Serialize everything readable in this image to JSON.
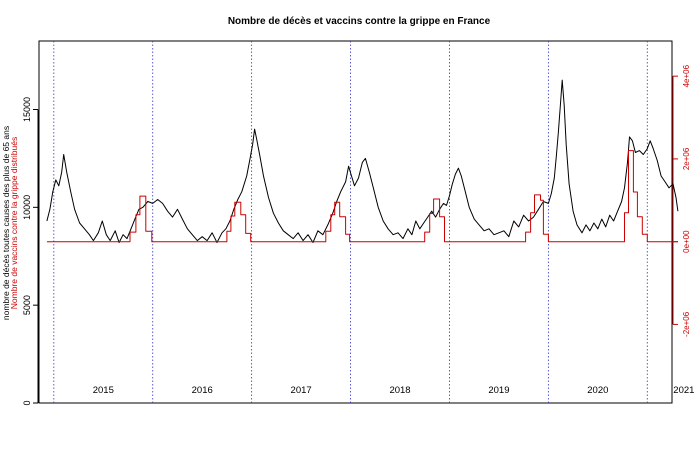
{
  "chart_data": {
    "type": "line",
    "title": "Nombre de décès et vaccins contre la grippe en France",
    "ylabel_left": "nombre de décès toutes causes des plus de 65 ans",
    "ylabel_right": "Nombre de vaccins contre la grippe distribués",
    "left_axis": {
      "ticks": [
        0,
        5000,
        10000,
        15000
      ],
      "tick_labels": [
        "0",
        "5000",
        "10000",
        "15000"
      ],
      "ylim": [
        0,
        18500
      ],
      "color": "#000000"
    },
    "right_axis": {
      "ticks": [
        -2000000,
        0,
        2000000,
        4000000
      ],
      "tick_labels": [
        "-2e+06",
        "0e+00",
        "2e+06",
        "4e+06"
      ],
      "ylim": [
        -3900000,
        4850000
      ],
      "color": "#cc0000"
    },
    "x_axis": {
      "xlim": [
        2014.85,
        2021.25
      ]
    },
    "year_labels": [
      {
        "x": 2015.5,
        "label": "2015"
      },
      {
        "x": 2016.5,
        "label": "2016"
      },
      {
        "x": 2017.5,
        "label": "2017"
      },
      {
        "x": 2018.5,
        "label": "2018"
      },
      {
        "x": 2019.5,
        "label": "2019"
      },
      {
        "x": 2020.5,
        "label": "2020"
      },
      {
        "x": 2021.37,
        "label": "2021"
      }
    ],
    "year_separators": [
      2015.0,
      2016.0,
      2017.0,
      2018.0,
      2019.0,
      2020.0,
      2021.0
    ],
    "series": [
      {
        "axis": "left",
        "color": "#000000",
        "points": [
          [
            2014.93,
            9300
          ],
          [
            2014.96,
            9900
          ],
          [
            2014.99,
            10800
          ],
          [
            2015.02,
            11400
          ],
          [
            2015.05,
            11100
          ],
          [
            2015.08,
            11800
          ],
          [
            2015.1,
            12700
          ],
          [
            2015.13,
            11800
          ],
          [
            2015.17,
            10800
          ],
          [
            2015.21,
            9900
          ],
          [
            2015.26,
            9200
          ],
          [
            2015.31,
            8900
          ],
          [
            2015.36,
            8600
          ],
          [
            2015.4,
            8300
          ],
          [
            2015.45,
            8700
          ],
          [
            2015.49,
            9300
          ],
          [
            2015.53,
            8600
          ],
          [
            2015.57,
            8300
          ],
          [
            2015.62,
            8800
          ],
          [
            2015.66,
            8200
          ],
          [
            2015.7,
            8600
          ],
          [
            2015.74,
            8400
          ],
          [
            2015.78,
            8900
          ],
          [
            2015.82,
            9400
          ],
          [
            2015.86,
            9900
          ],
          [
            2015.9,
            10000
          ],
          [
            2015.95,
            10300
          ],
          [
            2016.0,
            10200
          ],
          [
            2016.05,
            10400
          ],
          [
            2016.1,
            10200
          ],
          [
            2016.15,
            9800
          ],
          [
            2016.2,
            9500
          ],
          [
            2016.25,
            9900
          ],
          [
            2016.3,
            9400
          ],
          [
            2016.35,
            8900
          ],
          [
            2016.4,
            8600
          ],
          [
            2016.45,
            8300
          ],
          [
            2016.5,
            8500
          ],
          [
            2016.55,
            8300
          ],
          [
            2016.6,
            8700
          ],
          [
            2016.65,
            8200
          ],
          [
            2016.7,
            8700
          ],
          [
            2016.74,
            8900
          ],
          [
            2016.78,
            9300
          ],
          [
            2016.82,
            9900
          ],
          [
            2016.86,
            10400
          ],
          [
            2016.9,
            10800
          ],
          [
            2016.95,
            11600
          ],
          [
            2016.98,
            12400
          ],
          [
            2017.01,
            13200
          ],
          [
            2017.03,
            14000
          ],
          [
            2017.05,
            13500
          ],
          [
            2017.08,
            12700
          ],
          [
            2017.12,
            11600
          ],
          [
            2017.17,
            10500
          ],
          [
            2017.22,
            9700
          ],
          [
            2017.27,
            9200
          ],
          [
            2017.32,
            8800
          ],
          [
            2017.37,
            8600
          ],
          [
            2017.42,
            8400
          ],
          [
            2017.47,
            8700
          ],
          [
            2017.52,
            8300
          ],
          [
            2017.57,
            8600
          ],
          [
            2017.62,
            8200
          ],
          [
            2017.67,
            8800
          ],
          [
            2017.72,
            8600
          ],
          [
            2017.77,
            9100
          ],
          [
            2017.82,
            9700
          ],
          [
            2017.86,
            10300
          ],
          [
            2017.9,
            10800
          ],
          [
            2017.95,
            11300
          ],
          [
            2017.98,
            12100
          ],
          [
            2018.01,
            11600
          ],
          [
            2018.04,
            11100
          ],
          [
            2018.08,
            11500
          ],
          [
            2018.12,
            12300
          ],
          [
            2018.15,
            12500
          ],
          [
            2018.19,
            11800
          ],
          [
            2018.23,
            11000
          ],
          [
            2018.28,
            10000
          ],
          [
            2018.33,
            9300
          ],
          [
            2018.38,
            8900
          ],
          [
            2018.43,
            8600
          ],
          [
            2018.48,
            8700
          ],
          [
            2018.53,
            8400
          ],
          [
            2018.58,
            8900
          ],
          [
            2018.62,
            8600
          ],
          [
            2018.66,
            9300
          ],
          [
            2018.7,
            8900
          ],
          [
            2018.74,
            9200
          ],
          [
            2018.78,
            9500
          ],
          [
            2018.82,
            9800
          ],
          [
            2018.86,
            9500
          ],
          [
            2018.9,
            9900
          ],
          [
            2018.94,
            10200
          ],
          [
            2018.97,
            10100
          ],
          [
            2019.0,
            10600
          ],
          [
            2019.03,
            11200
          ],
          [
            2019.06,
            11700
          ],
          [
            2019.09,
            12000
          ],
          [
            2019.12,
            11600
          ],
          [
            2019.16,
            10800
          ],
          [
            2019.2,
            10000
          ],
          [
            2019.25,
            9400
          ],
          [
            2019.3,
            9100
          ],
          [
            2019.35,
            8800
          ],
          [
            2019.4,
            8900
          ],
          [
            2019.45,
            8600
          ],
          [
            2019.5,
            8700
          ],
          [
            2019.55,
            8800
          ],
          [
            2019.6,
            8500
          ],
          [
            2019.65,
            9300
          ],
          [
            2019.7,
            9000
          ],
          [
            2019.75,
            9600
          ],
          [
            2019.8,
            9300
          ],
          [
            2019.85,
            9500
          ],
          [
            2019.9,
            9900
          ],
          [
            2019.95,
            10300
          ],
          [
            2020.0,
            10200
          ],
          [
            2020.03,
            10700
          ],
          [
            2020.06,
            11500
          ],
          [
            2020.08,
            12600
          ],
          [
            2020.1,
            13800
          ],
          [
            2020.12,
            15100
          ],
          [
            2020.14,
            16500
          ],
          [
            2020.16,
            15200
          ],
          [
            2020.18,
            13200
          ],
          [
            2020.21,
            11200
          ],
          [
            2020.25,
            9800
          ],
          [
            2020.29,
            9100
          ],
          [
            2020.34,
            8700
          ],
          [
            2020.38,
            9100
          ],
          [
            2020.42,
            8800
          ],
          [
            2020.46,
            9200
          ],
          [
            2020.5,
            8900
          ],
          [
            2020.54,
            9400
          ],
          [
            2020.58,
            9000
          ],
          [
            2020.62,
            9600
          ],
          [
            2020.66,
            9300
          ],
          [
            2020.7,
            9800
          ],
          [
            2020.74,
            10300
          ],
          [
            2020.77,
            11000
          ],
          [
            2020.8,
            12300
          ],
          [
            2020.82,
            13600
          ],
          [
            2020.85,
            13400
          ],
          [
            2020.88,
            12800
          ],
          [
            2020.92,
            12900
          ],
          [
            2020.96,
            12700
          ],
          [
            2021.0,
            13000
          ],
          [
            2021.03,
            13400
          ],
          [
            2021.06,
            13000
          ],
          [
            2021.1,
            12400
          ],
          [
            2021.14,
            11600
          ],
          [
            2021.18,
            11300
          ],
          [
            2021.22,
            11000
          ],
          [
            2021.26,
            11200
          ],
          [
            2021.29,
            10500
          ],
          [
            2021.31,
            9800
          ]
        ]
      },
      {
        "axis": "right",
        "color": "#cc0000",
        "points": [
          [
            2014.93,
            0
          ],
          [
            2015.77,
            0
          ],
          [
            2015.77,
            230000
          ],
          [
            2015.83,
            230000
          ],
          [
            2015.83,
            650000
          ],
          [
            2015.87,
            650000
          ],
          [
            2015.87,
            1100000
          ],
          [
            2015.93,
            1100000
          ],
          [
            2015.93,
            250000
          ],
          [
            2015.99,
            250000
          ],
          [
            2015.99,
            0
          ],
          [
            2016.75,
            0
          ],
          [
            2016.75,
            250000
          ],
          [
            2016.79,
            250000
          ],
          [
            2016.79,
            620000
          ],
          [
            2016.83,
            620000
          ],
          [
            2016.83,
            950000
          ],
          [
            2016.89,
            950000
          ],
          [
            2016.89,
            650000
          ],
          [
            2016.94,
            650000
          ],
          [
            2016.94,
            200000
          ],
          [
            2016.99,
            200000
          ],
          [
            2016.99,
            0
          ],
          [
            2017.75,
            0
          ],
          [
            2017.75,
            250000
          ],
          [
            2017.8,
            250000
          ],
          [
            2017.8,
            650000
          ],
          [
            2017.84,
            650000
          ],
          [
            2017.84,
            950000
          ],
          [
            2017.89,
            950000
          ],
          [
            2017.89,
            600000
          ],
          [
            2017.95,
            600000
          ],
          [
            2017.95,
            180000
          ],
          [
            2017.99,
            180000
          ],
          [
            2017.99,
            0
          ],
          [
            2018.75,
            0
          ],
          [
            2018.75,
            230000
          ],
          [
            2018.8,
            230000
          ],
          [
            2018.8,
            680000
          ],
          [
            2018.84,
            680000
          ],
          [
            2018.84,
            1030000
          ],
          [
            2018.9,
            1030000
          ],
          [
            2018.9,
            600000
          ],
          [
            2018.95,
            600000
          ],
          [
            2018.95,
            0
          ],
          [
            2019.77,
            0
          ],
          [
            2019.77,
            230000
          ],
          [
            2019.82,
            230000
          ],
          [
            2019.82,
            700000
          ],
          [
            2019.86,
            700000
          ],
          [
            2019.86,
            1130000
          ],
          [
            2019.92,
            1130000
          ],
          [
            2019.92,
            1000000
          ],
          [
            2019.95,
            1000000
          ],
          [
            2019.95,
            180000
          ],
          [
            2020.0,
            180000
          ],
          [
            2020.0,
            0
          ],
          [
            2020.77,
            0
          ],
          [
            2020.77,
            700000
          ],
          [
            2020.81,
            700000
          ],
          [
            2020.81,
            2200000
          ],
          [
            2020.86,
            2200000
          ],
          [
            2020.86,
            1200000
          ],
          [
            2020.9,
            1200000
          ],
          [
            2020.9,
            600000
          ],
          [
            2020.95,
            600000
          ],
          [
            2020.95,
            180000
          ],
          [
            2021.0,
            180000
          ],
          [
            2021.0,
            0
          ],
          [
            2021.31,
            0
          ]
        ]
      }
    ],
    "grid": false
  }
}
